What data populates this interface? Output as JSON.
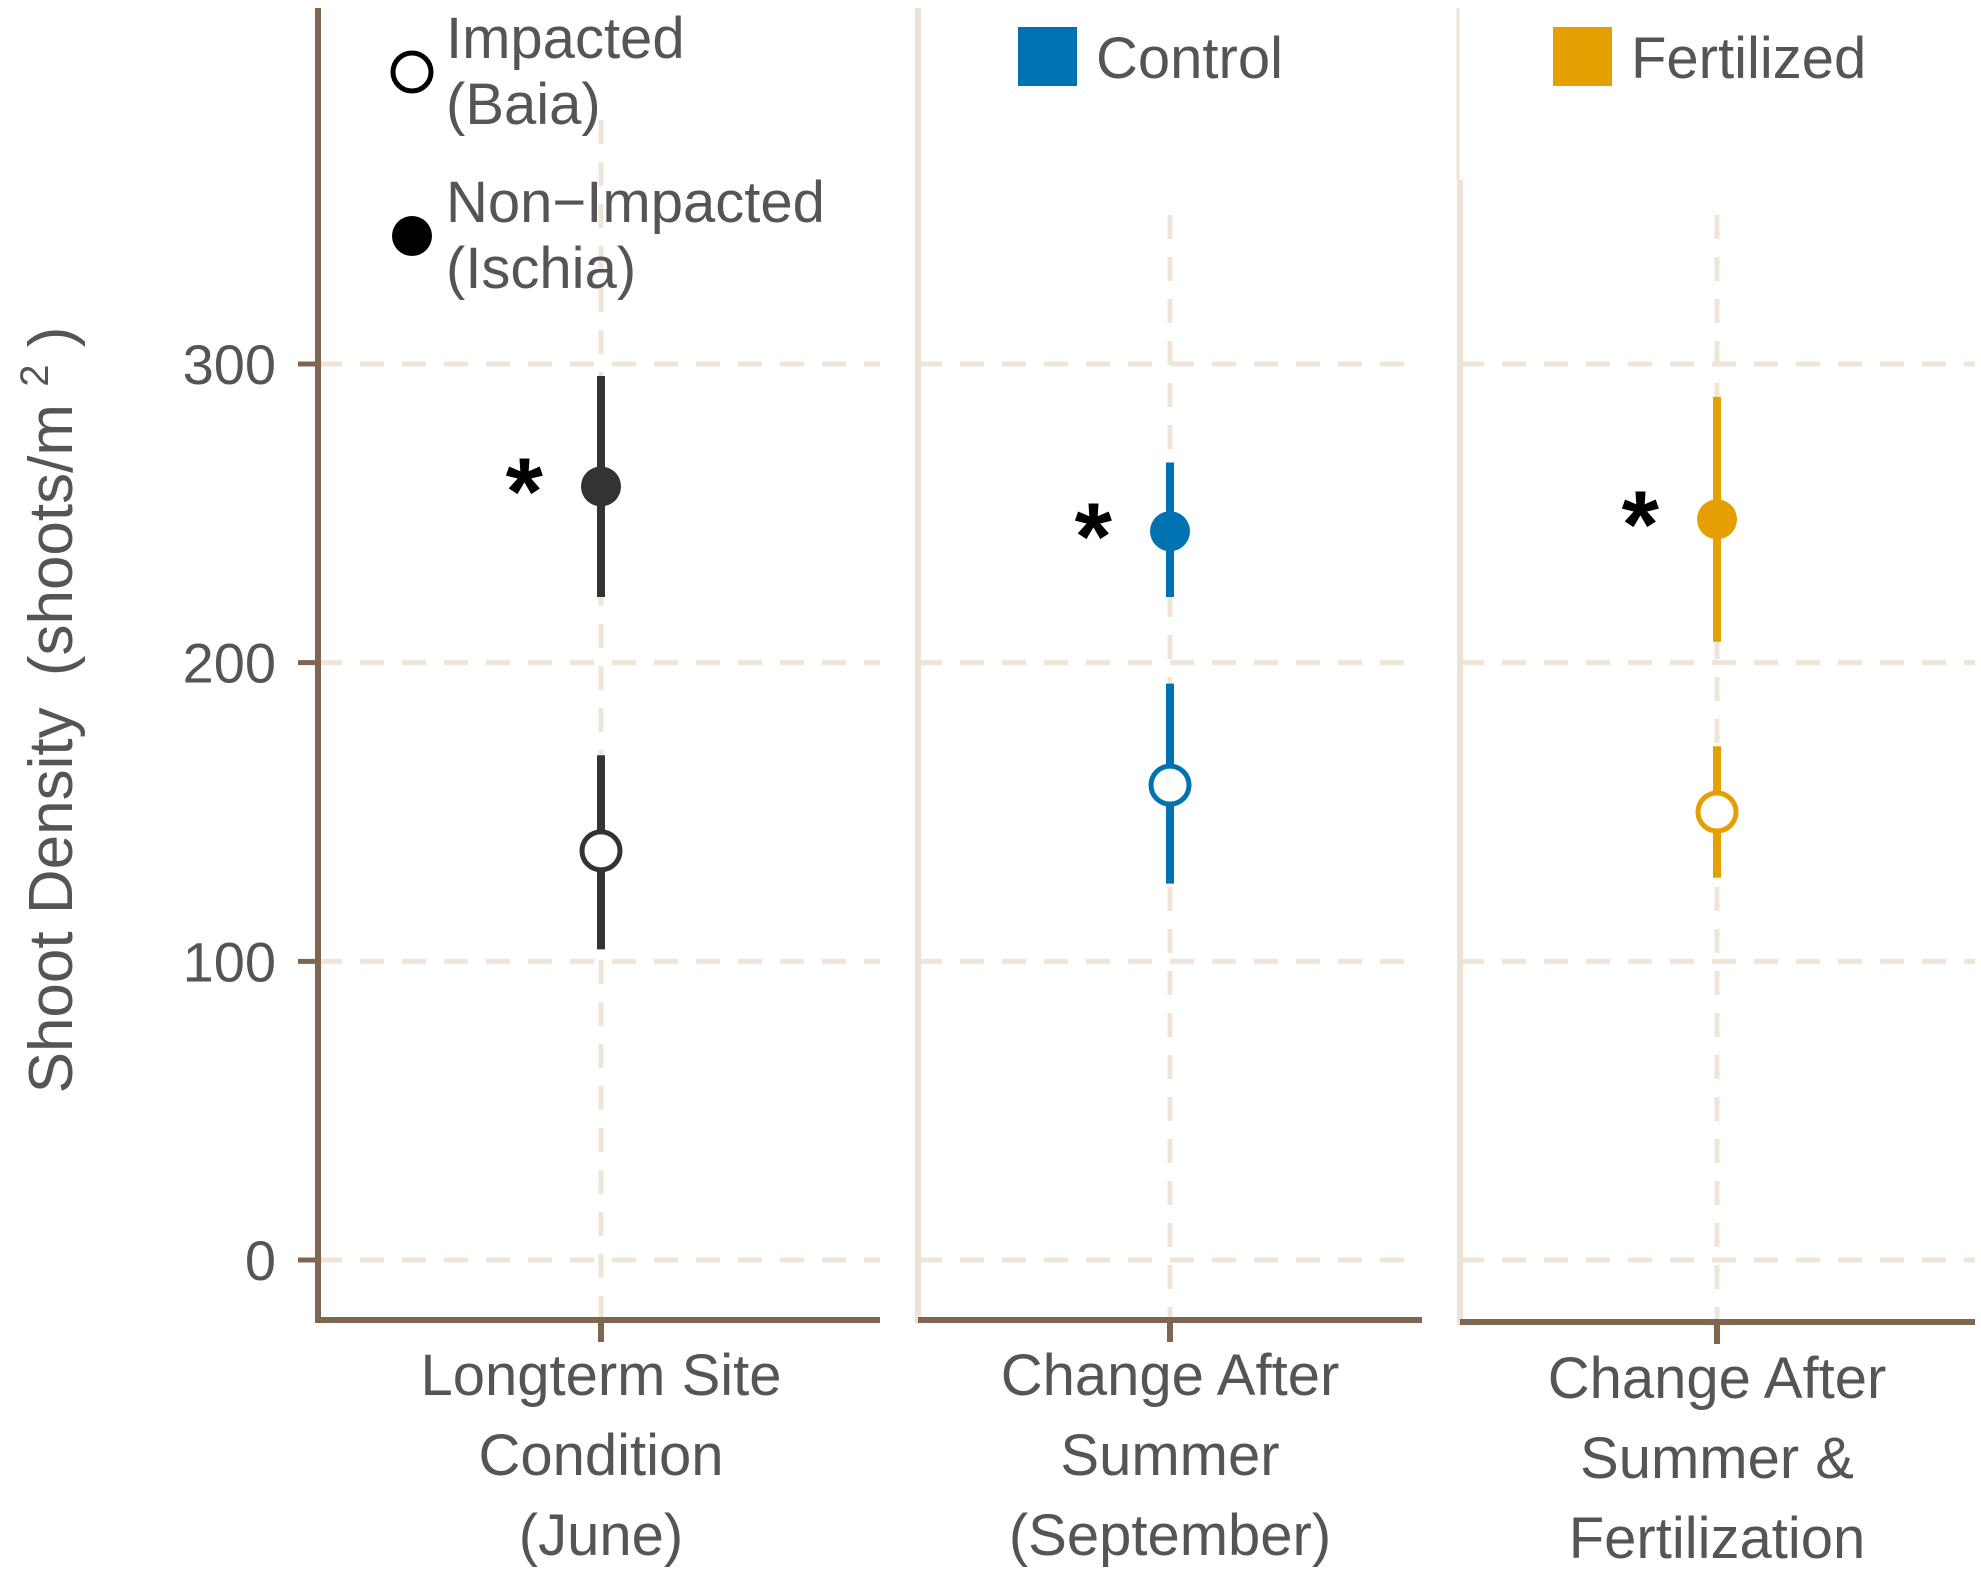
{
  "chart_data": {
    "type": "scatter",
    "subtype": "point-range (mean with error bars), three faceted panels",
    "ylabel_main": "Shoot Density",
    "ylabel_units": "(shoots/m",
    "ylabel_superscript": "2",
    "ylabel_close": ")",
    "ylim": [
      -20,
      420
    ],
    "yticks": [
      0,
      100,
      200,
      300
    ],
    "ytick_labels": [
      "0",
      "100",
      "200",
      "300"
    ],
    "grid": true,
    "panels": [
      {
        "category": "Longterm Site Condition (June)",
        "label_lines": [
          "Longterm Site",
          "Condition",
          "(June)"
        ],
        "color": "#333333",
        "legend": null,
        "points": [
          {
            "site": "Non-Impacted (Ischia)",
            "filled": true,
            "mean": 259,
            "lower": 222,
            "upper": 296,
            "significant": true
          },
          {
            "site": "Impacted (Baia)",
            "filled": false,
            "mean": 137,
            "lower": 104,
            "upper": 169,
            "significant": false
          }
        ]
      },
      {
        "category": "Change After Summer (September)",
        "label_lines": [
          "Change After",
          "Summer",
          "(September)"
        ],
        "color": "#0072B2",
        "legend": "Control",
        "points": [
          {
            "site": "Non-Impacted (Ischia)",
            "filled": true,
            "mean": 244,
            "lower": 222,
            "upper": 267,
            "significant": true
          },
          {
            "site": "Impacted (Baia)",
            "filled": false,
            "mean": 159,
            "lower": 126,
            "upper": 193,
            "significant": false
          }
        ]
      },
      {
        "category": "Change After Summer & Fertilization",
        "label_lines": [
          "Change After",
          "Summer &",
          "Fertilization"
        ],
        "color": "#E69F00",
        "legend": "Fertilized",
        "points": [
          {
            "site": "Non-Impacted (Ischia)",
            "filled": true,
            "mean": 248,
            "lower": 207,
            "upper": 289,
            "significant": true
          },
          {
            "site": "Impacted (Baia)",
            "filled": false,
            "mean": 150,
            "lower": 128,
            "upper": 172,
            "significant": false
          }
        ]
      }
    ],
    "site_legend": [
      {
        "filled": false,
        "lines": [
          "Impacted",
          "(Baia)"
        ]
      },
      {
        "filled": true,
        "lines": [
          "Non−Impacted",
          "(Ischia)"
        ]
      }
    ],
    "significance_marker": "*"
  },
  "colors": {
    "axis_dark": "#7f6650",
    "axis_light": "#ede2d5",
    "grid": "#efe4d8",
    "text": "#555555"
  }
}
